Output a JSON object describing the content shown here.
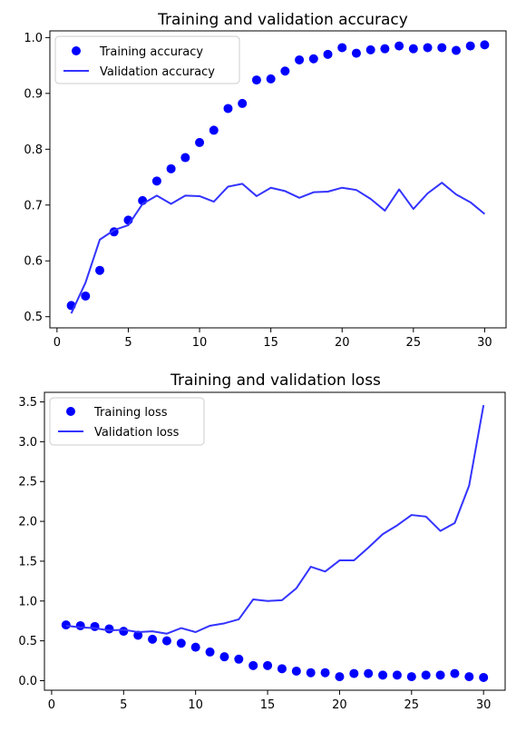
{
  "chart_data": [
    {
      "type": "line",
      "title": "Training and validation accuracy",
      "xlabel": "",
      "ylabel": "",
      "xlim": [
        -0.5,
        31.5
      ],
      "ylim": [
        0.48,
        1.012
      ],
      "xticks": [
        0,
        5,
        10,
        15,
        20,
        25,
        30
      ],
      "xtick_labels": [
        "0",
        "5",
        "10",
        "15",
        "20",
        "25",
        "30"
      ],
      "yticks": [
        0.5,
        0.6,
        0.7,
        0.8,
        0.9,
        1.0
      ],
      "ytick_labels": [
        "0.5",
        "0.6",
        "0.7",
        "0.8",
        "0.9",
        "1.0"
      ],
      "grid": false,
      "legend_position": "top-left",
      "series": [
        {
          "name": "Training accuracy",
          "style": "markers",
          "color": "#0000ff",
          "x": [
            1,
            2,
            3,
            4,
            5,
            6,
            7,
            8,
            9,
            10,
            11,
            12,
            13,
            14,
            15,
            16,
            17,
            18,
            19,
            20,
            21,
            22,
            23,
            24,
            25,
            26,
            27,
            28,
            29,
            30
          ],
          "y": [
            0.52,
            0.537,
            0.583,
            0.652,
            0.673,
            0.708,
            0.743,
            0.765,
            0.785,
            0.812,
            0.834,
            0.873,
            0.882,
            0.924,
            0.926,
            0.94,
            0.96,
            0.962,
            0.97,
            0.982,
            0.972,
            0.978,
            0.98,
            0.985,
            0.98,
            0.982,
            0.982,
            0.977,
            0.985,
            0.987
          ]
        },
        {
          "name": "Validation accuracy",
          "style": "line",
          "color": "#3333ff",
          "x": [
            1,
            2,
            3,
            4,
            5,
            6,
            7,
            8,
            9,
            10,
            11,
            12,
            13,
            14,
            15,
            16,
            17,
            18,
            19,
            20,
            21,
            22,
            23,
            24,
            25,
            26,
            27,
            28,
            29,
            30
          ],
          "y": [
            0.506,
            0.561,
            0.638,
            0.655,
            0.664,
            0.702,
            0.717,
            0.702,
            0.717,
            0.716,
            0.706,
            0.733,
            0.738,
            0.716,
            0.731,
            0.725,
            0.713,
            0.723,
            0.724,
            0.731,
            0.727,
            0.711,
            0.69,
            0.728,
            0.693,
            0.721,
            0.74,
            0.719,
            0.705,
            0.684
          ]
        }
      ]
    },
    {
      "type": "line",
      "title": "Training and validation loss",
      "xlabel": "",
      "ylabel": "",
      "xlim": [
        -0.5,
        31.5
      ],
      "ylim": [
        -0.12,
        3.62
      ],
      "xticks": [
        0,
        5,
        10,
        15,
        20,
        25,
        30
      ],
      "xtick_labels": [
        "0",
        "5",
        "10",
        "15",
        "20",
        "25",
        "30"
      ],
      "yticks": [
        0.0,
        0.5,
        1.0,
        1.5,
        2.0,
        2.5,
        3.0,
        3.5
      ],
      "ytick_labels": [
        "0.0",
        "0.5",
        "1.0",
        "1.5",
        "2.0",
        "2.5",
        "3.0",
        "3.5"
      ],
      "grid": false,
      "legend_position": "top-left",
      "series": [
        {
          "name": "Training loss",
          "style": "markers",
          "color": "#0000ff",
          "x": [
            1,
            2,
            3,
            4,
            5,
            6,
            7,
            8,
            9,
            10,
            11,
            12,
            13,
            14,
            15,
            16,
            17,
            18,
            19,
            20,
            21,
            22,
            23,
            24,
            25,
            26,
            27,
            28,
            29,
            30
          ],
          "y": [
            0.7,
            0.69,
            0.68,
            0.65,
            0.62,
            0.57,
            0.52,
            0.5,
            0.47,
            0.42,
            0.36,
            0.3,
            0.27,
            0.19,
            0.19,
            0.15,
            0.12,
            0.1,
            0.1,
            0.05,
            0.09,
            0.09,
            0.07,
            0.07,
            0.05,
            0.07,
            0.07,
            0.09,
            0.05,
            0.04
          ]
        },
        {
          "name": "Validation loss",
          "style": "line",
          "color": "#3333ff",
          "x": [
            1,
            2,
            3,
            4,
            5,
            6,
            7,
            8,
            9,
            10,
            11,
            12,
            13,
            14,
            15,
            16,
            17,
            18,
            19,
            20,
            21,
            22,
            23,
            24,
            25,
            26,
            27,
            28,
            29,
            30
          ],
          "y": [
            0.69,
            0.67,
            0.66,
            0.63,
            0.64,
            0.61,
            0.62,
            0.59,
            0.66,
            0.61,
            0.69,
            0.72,
            0.77,
            1.02,
            1.0,
            1.01,
            1.16,
            1.43,
            1.37,
            1.51,
            1.51,
            1.67,
            1.84,
            1.95,
            2.08,
            2.06,
            1.88,
            1.98,
            2.45,
            3.46
          ]
        }
      ]
    }
  ]
}
